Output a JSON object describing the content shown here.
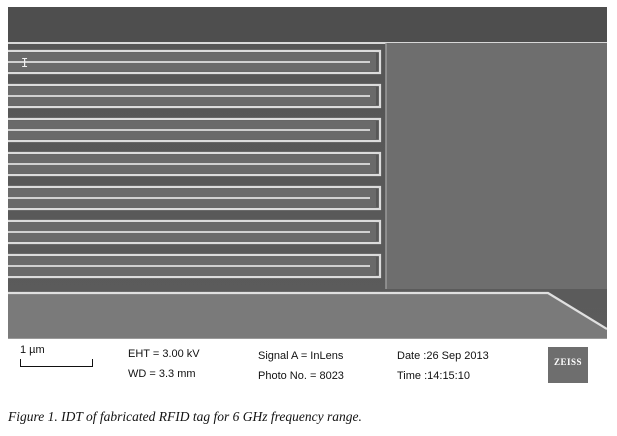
{
  "databar": {
    "scale_label": "1 µm",
    "eht": "EHT =  3.00 kV",
    "wd": "WD =  3.3 mm",
    "signal": "Signal A = InLens",
    "photo": "Photo No. = 8023",
    "date": "Date :26 Sep 2013",
    "time": "Time :14:15:10",
    "logo": "ZEISS"
  },
  "caption": "Figure 1. IDT of fabricated RFID tag for 6 GHz frequency range.",
  "colors": {
    "substrate": "#5a5a5a",
    "metal": "#828282",
    "edge_highlight": "#dcdcdc"
  }
}
